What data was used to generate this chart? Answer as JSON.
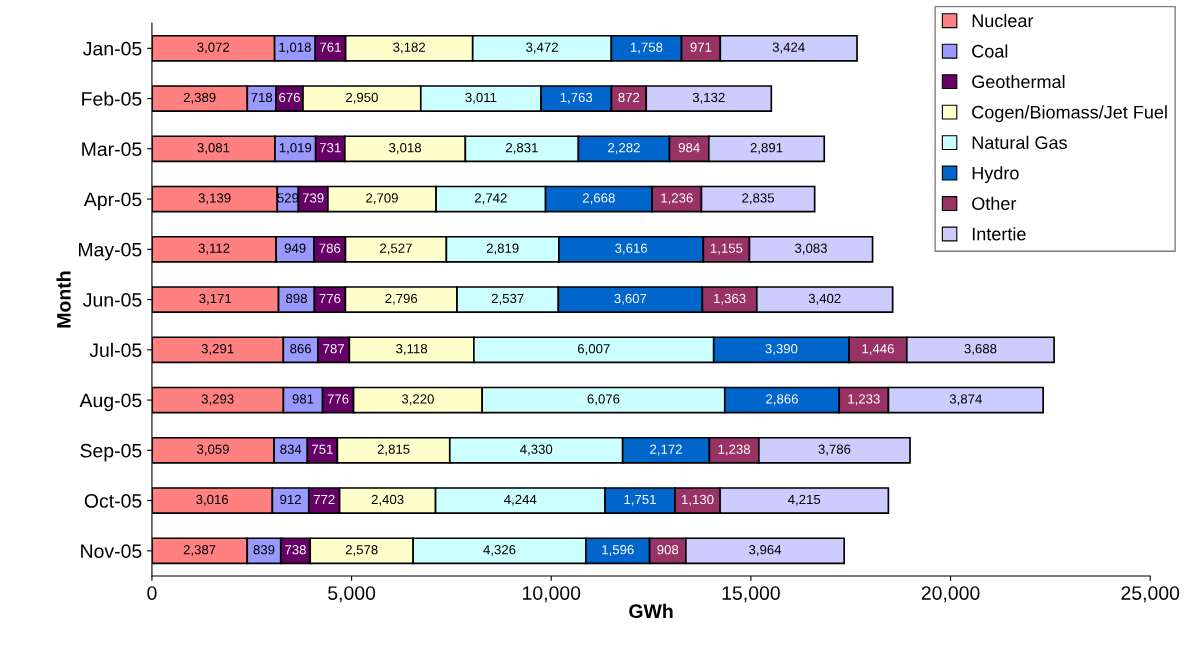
{
  "chart_data": {
    "type": "bar",
    "orientation": "horizontal",
    "stacked": true,
    "grid": false,
    "legend": "top right",
    "xlabel": "GWh",
    "ylabel": "Month",
    "categories": [
      "Jan-05",
      "Feb-05",
      "Mar-05",
      "Apr-05",
      "May-05",
      "Jun-05",
      "Jul-05",
      "Aug-05",
      "Sep-05",
      "Oct-05",
      "Nov-05"
    ],
    "xlim": [
      0,
      25000
    ],
    "xticks": [
      0,
      {
        "value": 5000,
        "label": "5,000"
      },
      {
        "value": 10000,
        "label": "10,000"
      },
      {
        "value": 15000,
        "label": "15,000"
      },
      {
        "value": 20000,
        "label": "20,000"
      },
      {
        "value": 25000,
        "label": "25,000"
      }
    ],
    "series": [
      {
        "name": "Nuclear",
        "color": "#ff8080",
        "values": [
          3072,
          2389,
          3081,
          3139,
          3112,
          3171,
          3291,
          3293,
          3059,
          3016,
          2387
        ],
        "value_labels": [
          "3,072",
          "2,389",
          "3,081",
          "3,139",
          "3,112",
          "3,171",
          "3,291",
          "3,293",
          "3,059",
          "3,016",
          "2,387"
        ]
      },
      {
        "name": "Coal",
        "color": "#9999ff",
        "values": [
          1018,
          718,
          1019,
          529,
          949,
          898,
          866,
          981,
          834,
          912,
          839
        ],
        "value_labels": [
          "1,018",
          "718",
          "1,019",
          "529",
          "949",
          "898",
          "866",
          "981",
          "834",
          "912",
          "839"
        ]
      },
      {
        "name": "Geothermal",
        "color": "#660066",
        "values": [
          761,
          676,
          731,
          739,
          786,
          776,
          787,
          776,
          751,
          772,
          738
        ],
        "value_labels": [
          "761",
          "676",
          "731",
          "739",
          "786",
          "776",
          "787",
          "776",
          "751",
          "772",
          "738"
        ]
      },
      {
        "name": "Cogen/Biomass/Jet Fuel",
        "color": "#ffffcc",
        "values": [
          3182,
          2950,
          3018,
          2709,
          2527,
          2796,
          3118,
          3220,
          2815,
          2403,
          2578
        ],
        "value_labels": [
          "3,182",
          "2,950",
          "3,018",
          "2,709",
          "2,527",
          "2,796",
          "3,118",
          "3,220",
          "2,815",
          "2,403",
          "2,578"
        ]
      },
      {
        "name": "Natural Gas",
        "color": "#ccffff",
        "values": [
          3472,
          3011,
          2831,
          2742,
          2819,
          2537,
          6007,
          6076,
          4330,
          4244,
          4326
        ],
        "value_labels": [
          "3,472",
          "3,011",
          "2,831",
          "2,742",
          "2,819",
          "2,537",
          "6,007",
          "6,076",
          "4,330",
          "4,244",
          "4,326"
        ]
      },
      {
        "name": "Hydro",
        "color": "#0066cc",
        "values": [
          1758,
          1763,
          2282,
          2668,
          3616,
          3607,
          3390,
          2866,
          2172,
          1751,
          1596
        ],
        "value_labels": [
          "1,758",
          "1,763",
          "2,282",
          "2,668",
          "3,616",
          "3,607",
          "3,390",
          "2,866",
          "2,172",
          "1,751",
          "1,596"
        ]
      },
      {
        "name": "Other",
        "color": "#993366",
        "values": [
          971,
          872,
          984,
          1236,
          1155,
          1363,
          1446,
          1233,
          1238,
          1130,
          908
        ],
        "value_labels": [
          "971",
          "872",
          "984",
          "1,236",
          "1,155",
          "1,363",
          "1,446",
          "1,233",
          "1,238",
          "1,130",
          "908"
        ]
      },
      {
        "name": "Intertie",
        "color": "#ccccff",
        "values": [
          3424,
          3132,
          2891,
          2835,
          3083,
          3402,
          3688,
          3874,
          3786,
          4215,
          3964
        ],
        "value_labels": [
          "3,424",
          "3,132",
          "2,891",
          "2,835",
          "3,083",
          "3,402",
          "3,688",
          "3,874",
          "3,786",
          "4,215",
          "3,964"
        ]
      }
    ]
  }
}
